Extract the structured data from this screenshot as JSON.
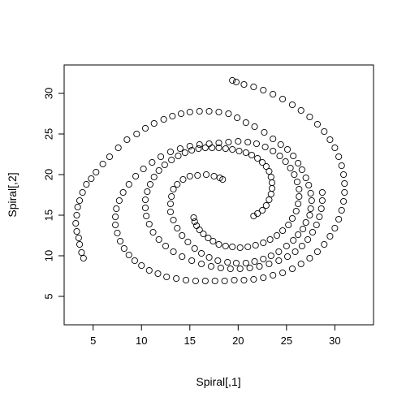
{
  "chart_data": {
    "type": "scatter",
    "title": "",
    "xlabel": "Spiral[,1]",
    "ylabel": "Spiral[,2]",
    "xlim": [
      2,
      34
    ],
    "ylim": [
      1.5,
      33.5
    ],
    "xticks": [
      5,
      10,
      15,
      20,
      25,
      30
    ],
    "yticks": [
      5,
      10,
      15,
      20,
      25,
      30
    ],
    "grid": false,
    "marker": "open-circle",
    "marker_color": "#000000",
    "series": [
      {
        "points": [
          [
            4.0,
            9.7
          ],
          [
            3.8,
            10.4
          ],
          [
            3.6,
            11.4
          ],
          [
            3.5,
            12.2
          ],
          [
            3.3,
            13.0
          ],
          [
            3.2,
            14.0
          ],
          [
            3.3,
            15.0
          ],
          [
            3.4,
            16.0
          ],
          [
            3.6,
            16.8
          ],
          [
            3.9,
            17.8
          ],
          [
            4.3,
            18.8
          ],
          [
            4.8,
            19.5
          ],
          [
            5.3,
            20.3
          ],
          [
            6.0,
            21.3
          ],
          [
            6.7,
            22.2
          ],
          [
            7.6,
            23.3
          ],
          [
            8.5,
            24.3
          ],
          [
            9.5,
            25.0
          ],
          [
            10.4,
            25.7
          ],
          [
            11.3,
            26.3
          ],
          [
            12.3,
            26.8
          ],
          [
            13.2,
            27.2
          ],
          [
            14.1,
            27.5
          ],
          [
            15.0,
            27.7
          ],
          [
            16.0,
            27.8
          ],
          [
            17.0,
            27.8
          ],
          [
            18.0,
            27.7
          ],
          [
            19.0,
            27.5
          ],
          [
            19.9,
            27.0
          ],
          [
            20.8,
            26.4
          ],
          [
            21.7,
            25.9
          ],
          [
            22.7,
            25.2
          ],
          [
            23.6,
            24.4
          ],
          [
            24.4,
            23.7
          ],
          [
            25.1,
            23.1
          ],
          [
            25.7,
            22.3
          ],
          [
            26.2,
            21.4
          ],
          [
            26.6,
            20.6
          ],
          [
            27.0,
            19.6
          ],
          [
            27.3,
            18.7
          ],
          [
            27.5,
            17.7
          ],
          [
            27.6,
            16.8
          ],
          [
            27.5,
            15.8
          ],
          [
            27.4,
            15.0
          ],
          [
            27.0,
            14.1
          ],
          [
            26.7,
            13.3
          ],
          [
            26.2,
            12.6
          ],
          [
            25.7,
            11.9
          ],
          [
            25.0,
            11.2
          ],
          [
            24.2,
            10.5
          ],
          [
            23.4,
            10.0
          ],
          [
            22.6,
            9.6
          ],
          [
            21.7,
            9.3
          ],
          [
            20.8,
            9.1
          ],
          [
            19.8,
            9.1
          ],
          [
            18.9,
            9.2
          ],
          [
            17.9,
            9.4
          ],
          [
            17.0,
            9.8
          ],
          [
            16.2,
            10.3
          ],
          [
            15.5,
            10.9
          ],
          [
            14.8,
            11.7
          ],
          [
            14.2,
            12.5
          ],
          [
            13.7,
            13.4
          ],
          [
            13.3,
            14.4
          ],
          [
            13.0,
            15.4
          ],
          [
            13.0,
            16.4
          ],
          [
            13.1,
            17.3
          ],
          [
            13.3,
            18.2
          ],
          [
            13.7,
            18.8
          ],
          [
            14.3,
            19.4
          ],
          [
            15.0,
            19.8
          ],
          [
            15.8,
            19.9
          ],
          [
            16.7,
            20.0
          ],
          [
            17.5,
            19.8
          ],
          [
            18.1,
            19.6
          ],
          [
            18.4,
            19.4
          ]
        ]
      },
      {
        "points": [
          [
            15.4,
            14.7
          ],
          [
            15.5,
            14.2
          ],
          [
            15.7,
            13.7
          ],
          [
            16.0,
            13.2
          ],
          [
            16.4,
            12.7
          ],
          [
            16.9,
            12.2
          ],
          [
            17.4,
            11.8
          ],
          [
            18.0,
            11.4
          ],
          [
            18.7,
            11.2
          ],
          [
            19.4,
            11.1
          ],
          [
            20.2,
            11.0
          ],
          [
            21.0,
            11.1
          ],
          [
            21.8,
            11.3
          ],
          [
            22.6,
            11.6
          ],
          [
            23.3,
            12.0
          ],
          [
            24.0,
            12.5
          ],
          [
            24.6,
            13.1
          ],
          [
            25.2,
            13.8
          ],
          [
            25.6,
            14.6
          ],
          [
            26.0,
            15.5
          ],
          [
            26.2,
            16.4
          ],
          [
            26.3,
            17.3
          ],
          [
            26.3,
            18.2
          ],
          [
            26.1,
            19.1
          ],
          [
            25.8,
            20.0
          ],
          [
            25.4,
            20.8
          ],
          [
            24.9,
            21.6
          ],
          [
            24.3,
            22.3
          ],
          [
            23.6,
            22.9
          ],
          [
            22.8,
            23.4
          ],
          [
            21.9,
            23.8
          ],
          [
            21.0,
            24.0
          ],
          [
            20.0,
            24.1
          ],
          [
            19.0,
            24.0
          ],
          [
            18.0,
            23.9
          ],
          [
            17.0,
            23.8
          ],
          [
            16.0,
            23.7
          ],
          [
            15.0,
            23.5
          ],
          [
            14.0,
            23.2
          ],
          [
            13.0,
            22.8
          ],
          [
            12.0,
            22.2
          ],
          [
            11.1,
            21.5
          ],
          [
            10.2,
            20.7
          ],
          [
            9.4,
            19.8
          ],
          [
            8.7,
            18.8
          ],
          [
            8.1,
            17.8
          ],
          [
            7.7,
            16.8
          ],
          [
            7.4,
            15.8
          ],
          [
            7.3,
            14.8
          ],
          [
            7.3,
            13.8
          ],
          [
            7.5,
            12.8
          ],
          [
            7.8,
            11.8
          ],
          [
            8.2,
            10.9
          ],
          [
            8.7,
            10.1
          ],
          [
            9.3,
            9.4
          ],
          [
            10.0,
            8.8
          ],
          [
            10.8,
            8.2
          ],
          [
            11.7,
            7.8
          ],
          [
            12.6,
            7.4
          ],
          [
            13.6,
            7.2
          ],
          [
            14.6,
            7.0
          ],
          [
            15.6,
            6.9
          ],
          [
            16.6,
            6.9
          ],
          [
            17.6,
            6.9
          ],
          [
            18.6,
            6.9
          ],
          [
            19.6,
            7.0
          ],
          [
            20.6,
            7.0
          ],
          [
            21.6,
            7.1
          ],
          [
            22.6,
            7.3
          ],
          [
            23.6,
            7.6
          ],
          [
            24.6,
            7.9
          ],
          [
            25.6,
            8.4
          ],
          [
            26.5,
            9.0
          ],
          [
            27.4,
            9.7
          ],
          [
            28.2,
            10.5
          ],
          [
            28.9,
            11.4
          ],
          [
            29.5,
            12.4
          ],
          [
            30.0,
            13.4
          ],
          [
            30.4,
            14.5
          ],
          [
            30.7,
            15.6
          ],
          [
            30.9,
            16.7
          ],
          [
            31.0,
            17.8
          ],
          [
            31.0,
            18.9
          ],
          [
            30.9,
            20.0
          ],
          [
            30.7,
            21.1
          ],
          [
            30.4,
            22.2
          ],
          [
            30.0,
            23.3
          ],
          [
            29.5,
            24.3
          ],
          [
            28.9,
            25.3
          ],
          [
            28.2,
            26.2
          ],
          [
            27.4,
            27.1
          ],
          [
            26.5,
            27.9
          ],
          [
            25.6,
            28.6
          ],
          [
            24.6,
            29.3
          ],
          [
            23.6,
            29.9
          ],
          [
            22.6,
            30.4
          ],
          [
            21.6,
            30.8
          ],
          [
            20.6,
            31.1
          ],
          [
            19.8,
            31.4
          ],
          [
            19.4,
            31.6
          ]
        ]
      },
      {
        "points": [
          [
            21.6,
            14.9
          ],
          [
            22.0,
            15.2
          ],
          [
            22.5,
            15.6
          ],
          [
            22.9,
            16.2
          ],
          [
            23.2,
            16.9
          ],
          [
            23.4,
            17.6
          ],
          [
            23.5,
            18.3
          ],
          [
            23.5,
            19.0
          ],
          [
            23.4,
            19.7
          ],
          [
            23.2,
            20.4
          ],
          [
            22.9,
            21.0
          ],
          [
            22.5,
            21.5
          ],
          [
            22.0,
            22.0
          ],
          [
            21.4,
            22.4
          ],
          [
            20.8,
            22.7
          ],
          [
            20.1,
            22.9
          ],
          [
            19.4,
            23.1
          ],
          [
            18.7,
            23.2
          ],
          [
            18.0,
            23.3
          ],
          [
            17.3,
            23.3
          ],
          [
            16.6,
            23.3
          ],
          [
            15.9,
            23.2
          ],
          [
            15.2,
            23.0
          ],
          [
            14.5,
            22.7
          ],
          [
            13.8,
            22.3
          ],
          [
            13.1,
            21.8
          ],
          [
            12.4,
            21.2
          ],
          [
            11.8,
            20.5
          ],
          [
            11.3,
            19.7
          ],
          [
            10.9,
            18.8
          ],
          [
            10.6,
            17.9
          ],
          [
            10.4,
            16.9
          ],
          [
            10.4,
            15.9
          ],
          [
            10.5,
            14.9
          ],
          [
            10.8,
            13.9
          ],
          [
            11.2,
            12.9
          ],
          [
            11.8,
            12.0
          ],
          [
            12.5,
            11.2
          ],
          [
            13.3,
            10.5
          ],
          [
            14.2,
            9.9
          ],
          [
            15.2,
            9.4
          ],
          [
            16.2,
            9.0
          ],
          [
            17.2,
            8.7
          ],
          [
            18.2,
            8.5
          ],
          [
            19.2,
            8.4
          ],
          [
            20.2,
            8.4
          ],
          [
            21.2,
            8.5
          ],
          [
            22.2,
            8.7
          ],
          [
            23.2,
            9.0
          ],
          [
            24.2,
            9.4
          ],
          [
            25.1,
            9.9
          ],
          [
            25.9,
            10.5
          ],
          [
            26.6,
            11.2
          ],
          [
            27.2,
            12.0
          ],
          [
            27.7,
            12.9
          ],
          [
            28.1,
            13.8
          ],
          [
            28.4,
            14.8
          ],
          [
            28.6,
            15.8
          ],
          [
            28.7,
            16.8
          ],
          [
            28.7,
            17.8
          ]
        ]
      }
    ]
  }
}
